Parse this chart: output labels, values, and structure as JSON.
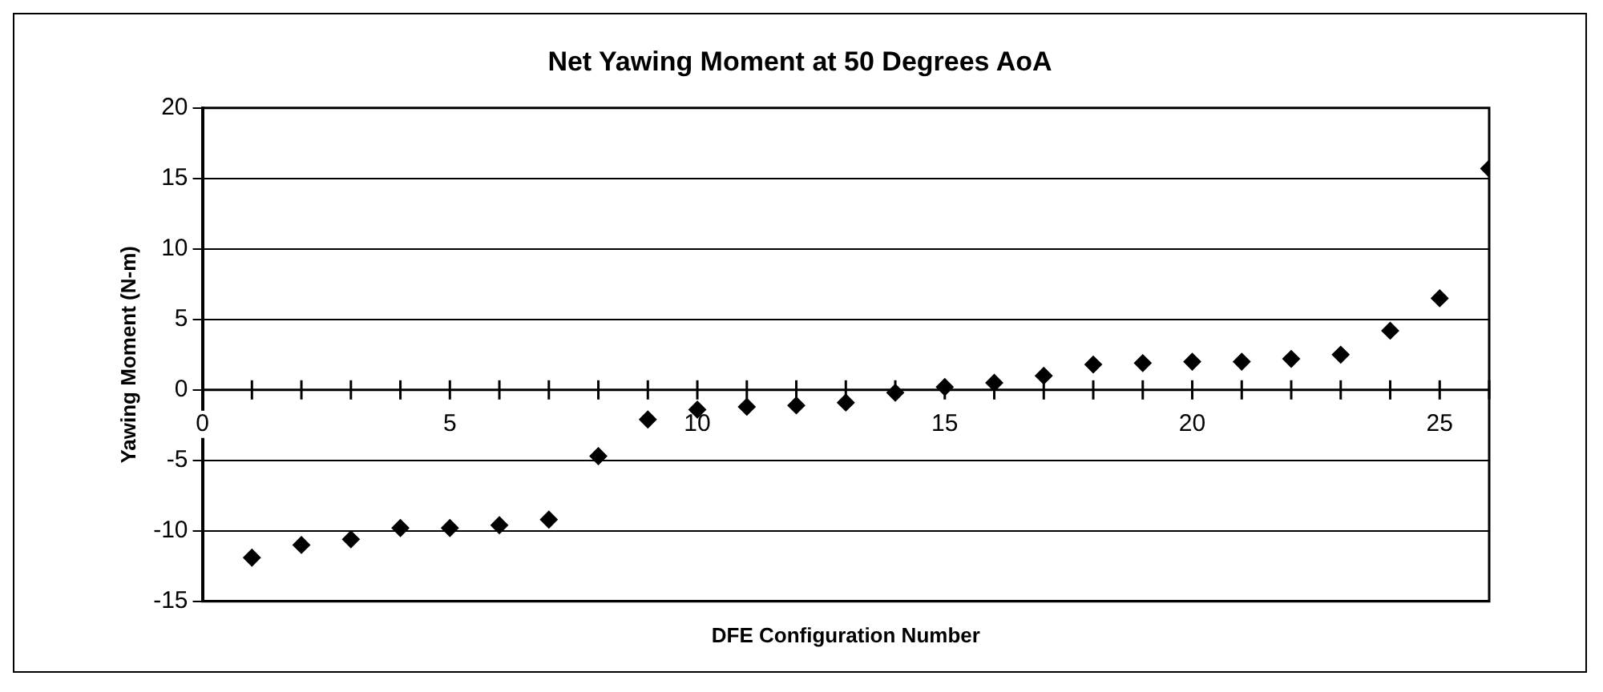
{
  "chart_data": {
    "type": "scatter",
    "title": "Net Yawing Moment at 50 Degrees AoA",
    "xlabel": "DFE Configuration Number",
    "ylabel": "Yawing Moment (N-m)",
    "x": [
      1,
      2,
      3,
      4,
      5,
      6,
      7,
      8,
      9,
      10,
      11,
      12,
      13,
      14,
      15,
      16,
      17,
      18,
      19,
      20,
      21,
      22,
      23,
      24,
      25,
      26
    ],
    "series": [
      {
        "color": "#000000",
        "values": [
          -11.9,
          -11,
          -10.6,
          -9.8,
          -9.8,
          -9.6,
          -9.2,
          -4.7,
          -2.1,
          -1.4,
          -1.2,
          -1.1,
          -0.9,
          -0.2,
          0.2,
          0.5,
          1.0,
          1.8,
          1.9,
          2.0,
          2.0,
          2.2,
          2.5,
          4.2,
          6.5,
          15.7
        ]
      }
    ],
    "xlim": [
      0,
      26
    ],
    "xticks": [
      0,
      {
        "value": 1,
        "label": null
      },
      {
        "value": 2,
        "label": null
      },
      {
        "value": 3,
        "label": null
      },
      {
        "value": 4,
        "label": null
      },
      5,
      {
        "value": 6,
        "label": null
      },
      {
        "value": 7,
        "label": null
      },
      {
        "value": 8,
        "label": null
      },
      {
        "value": 9,
        "label": null
      },
      10,
      {
        "value": 11,
        "label": null
      },
      {
        "value": 12,
        "label": null
      },
      {
        "value": 13,
        "label": null
      },
      {
        "value": 14,
        "label": null
      },
      15,
      {
        "value": 16,
        "label": null
      },
      {
        "value": 17,
        "label": null
      },
      {
        "value": 18,
        "label": null
      },
      {
        "value": 19,
        "label": null
      },
      20,
      {
        "value": 21,
        "label": null
      },
      {
        "value": 22,
        "label": null
      },
      {
        "value": 23,
        "label": null
      },
      {
        "value": 24,
        "label": null
      },
      25,
      {
        "value": 26,
        "label": null
      }
    ],
    "ylim": [
      -15,
      20
    ],
    "yticks": [
      -15,
      -10,
      -5,
      0,
      5,
      10,
      15,
      20
    ],
    "grid": "y",
    "legend": false,
    "marker": "diamond"
  }
}
